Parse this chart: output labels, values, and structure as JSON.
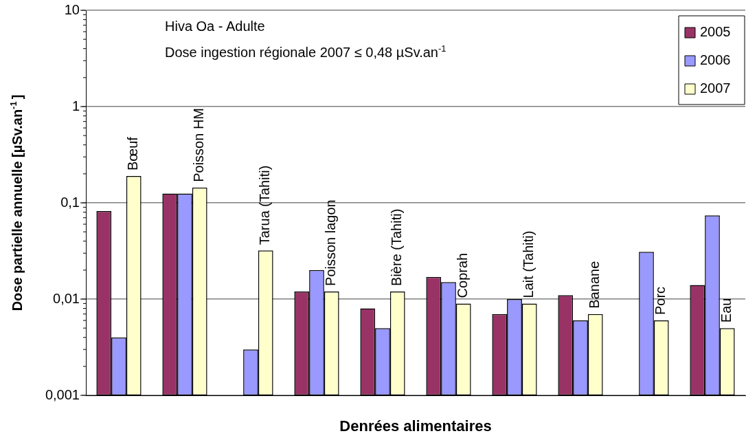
{
  "chart_data": {
    "type": "bar",
    "xlabel": "Denrées alimentaires",
    "ylabel": "Dose partielle annuelle [µSv.an$^{-1}$]",
    "annotations": [
      "Hiva Oa - Adulte",
      "Dose ingestion régionale 2007 ≤ 0,48 µSv.an$^{-1}$"
    ],
    "categories": [
      "Bœuf",
      "Poisson HM",
      "Tarua (Tahiti)",
      "Poisson lagon",
      "Bière (Tahiti)",
      "Coprah",
      "Lait (Tahiti)",
      "Banane",
      "Porc",
      "Eau"
    ],
    "series": [
      {
        "name": "2005",
        "color": "#993366",
        "values": [
          0.082,
          0.125,
          null,
          0.012,
          0.008,
          0.017,
          0.007,
          0.011,
          null,
          0.014
        ]
      },
      {
        "name": "2006",
        "color": "#9999ff",
        "values": [
          0.004,
          0.125,
          0.003,
          0.02,
          0.005,
          0.015,
          0.01,
          0.006,
          0.031,
          0.074
        ]
      },
      {
        "name": "2007",
        "color": "#ffffcc",
        "values": [
          0.19,
          0.144,
          0.032,
          0.012,
          0.012,
          0.009,
          0.009,
          0.007,
          0.006,
          0.005
        ]
      }
    ],
    "log": "y",
    "ylim": [
      0.001,
      10
    ],
    "yticks": [
      {
        "value": 0.001,
        "label": "0,001"
      },
      {
        "value": 0.002,
        "label": null
      },
      {
        "value": 0.003,
        "label": null
      },
      {
        "value": 0.004,
        "label": null
      },
      {
        "value": 0.005,
        "label": null
      },
      {
        "value": 0.006,
        "label": null
      },
      {
        "value": 0.007,
        "label": null
      },
      {
        "value": 0.008,
        "label": null
      },
      {
        "value": 0.009,
        "label": null
      },
      {
        "value": 0.01,
        "label": "0,01"
      },
      {
        "value": 0.02,
        "label": null
      },
      {
        "value": 0.03,
        "label": null
      },
      {
        "value": 0.04,
        "label": null
      },
      {
        "value": 0.05,
        "label": null
      },
      {
        "value": 0.06,
        "label": null
      },
      {
        "value": 0.07,
        "label": null
      },
      {
        "value": 0.08,
        "label": null
      },
      {
        "value": 0.09,
        "label": null
      },
      {
        "value": 0.1,
        "label": "0,1"
      },
      {
        "value": 0.2,
        "label": null
      },
      {
        "value": 0.3,
        "label": null
      },
      {
        "value": 0.4,
        "label": null
      },
      {
        "value": 0.5,
        "label": null
      },
      {
        "value": 0.6,
        "label": null
      },
      {
        "value": 0.7,
        "label": null
      },
      {
        "value": 0.8,
        "label": null
      },
      {
        "value": 0.9,
        "label": null
      },
      {
        "value": 1,
        "label": "1"
      },
      {
        "value": 2,
        "label": null
      },
      {
        "value": 3,
        "label": null
      },
      {
        "value": 4,
        "label": null
      },
      {
        "value": 5,
        "label": null
      },
      {
        "value": 6,
        "label": null
      },
      {
        "value": 7,
        "label": null
      },
      {
        "value": 8,
        "label": null
      },
      {
        "value": 9,
        "label": null
      },
      10
    ],
    "grid": "y",
    "legend": "top right"
  }
}
